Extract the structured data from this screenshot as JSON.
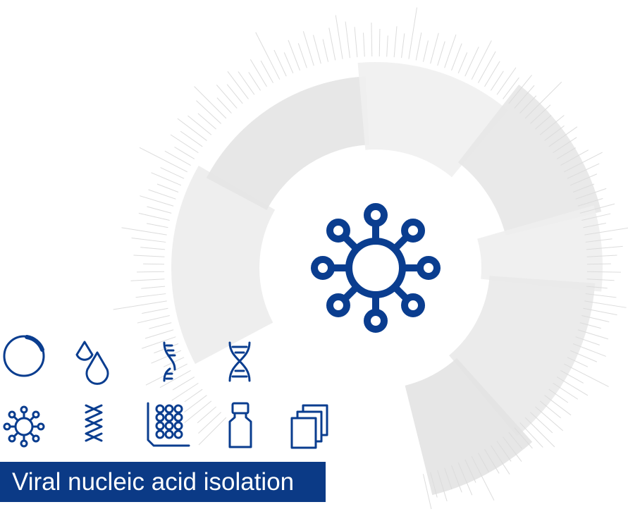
{
  "label": "Viral nucleic acid isolation"
}
